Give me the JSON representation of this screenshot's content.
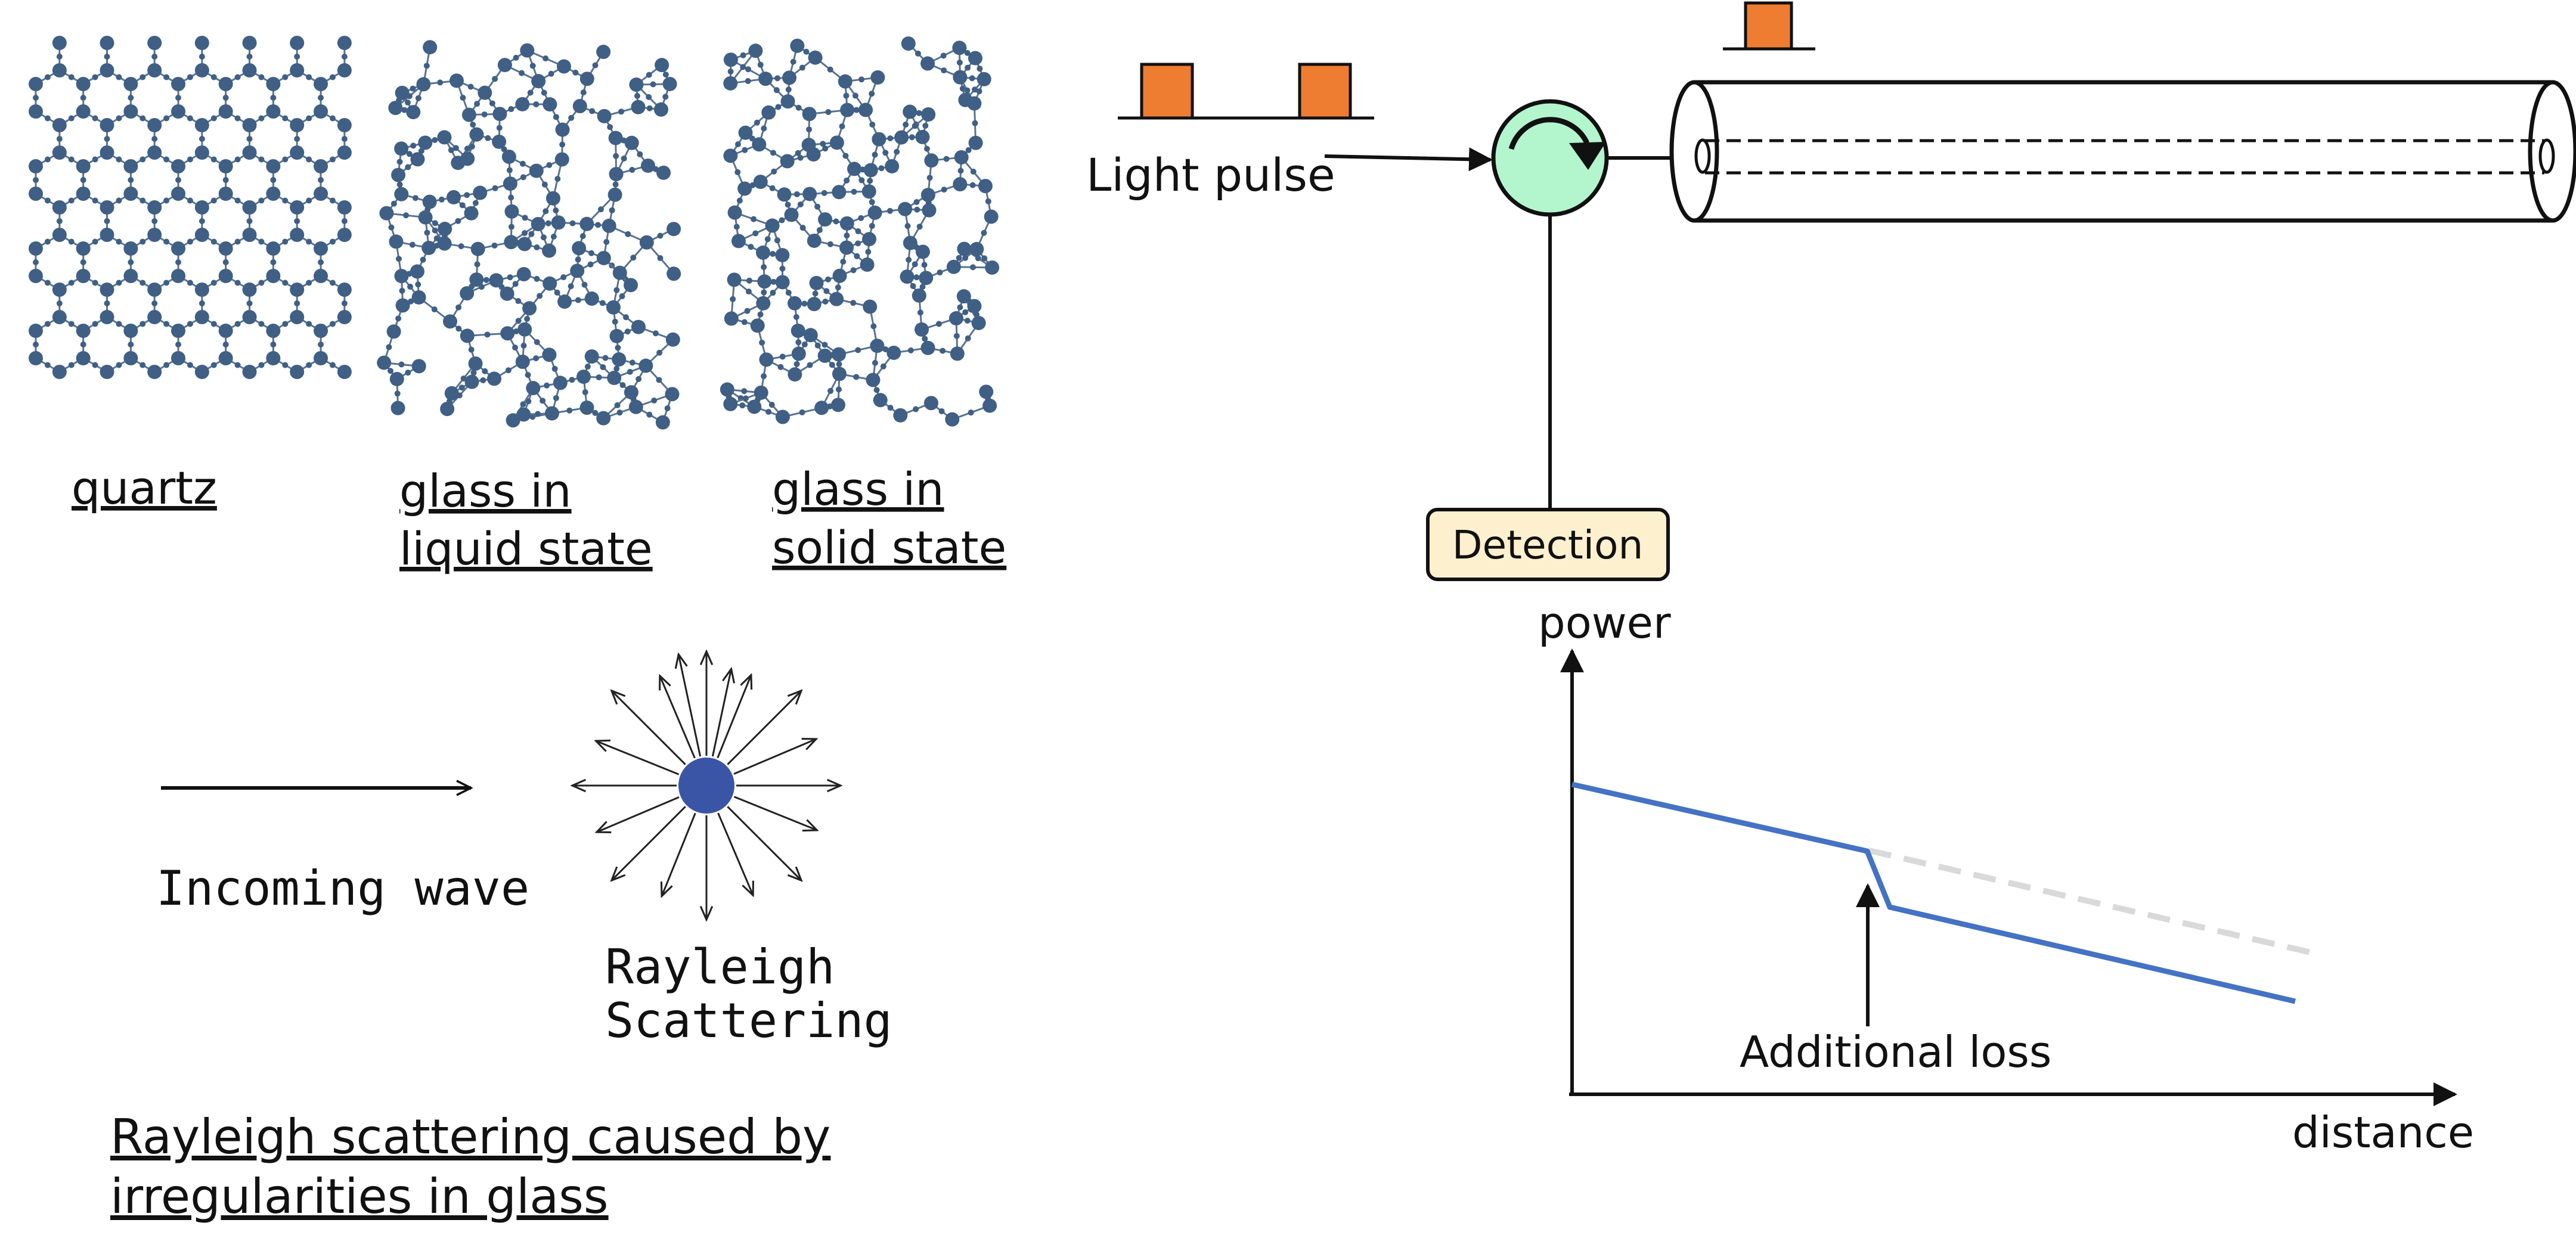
{
  "lattice": {
    "quartz_label": "quartz",
    "liquid_label_line1": "glass in",
    "liquid_label_line2": "liquid state",
    "solid_label_line1": "glass in",
    "solid_label_line2": "solid state"
  },
  "scattering": {
    "incoming_label": "Incoming wave",
    "scatter_label_line1": "Rayleigh",
    "scatter_label_line2": "Scattering",
    "caption_line1": "Rayleigh scattering caused by",
    "caption_line2": "irregularities in glass"
  },
  "otdr": {
    "pulse_label": "Light pulse",
    "detection_label": "Detection",
    "power_label": "power",
    "distance_label": "distance",
    "loss_label": "Additional loss"
  },
  "colors": {
    "atom": "#3f5f85",
    "bond": "#5a7290",
    "pulse": "#ee7d31",
    "circulator": "#b3f5cd",
    "detection_box": "#fdf0cf",
    "trace": "#4472c4",
    "trace_reference": "#d9d9d9",
    "scatter_center": "#3b55a6"
  }
}
